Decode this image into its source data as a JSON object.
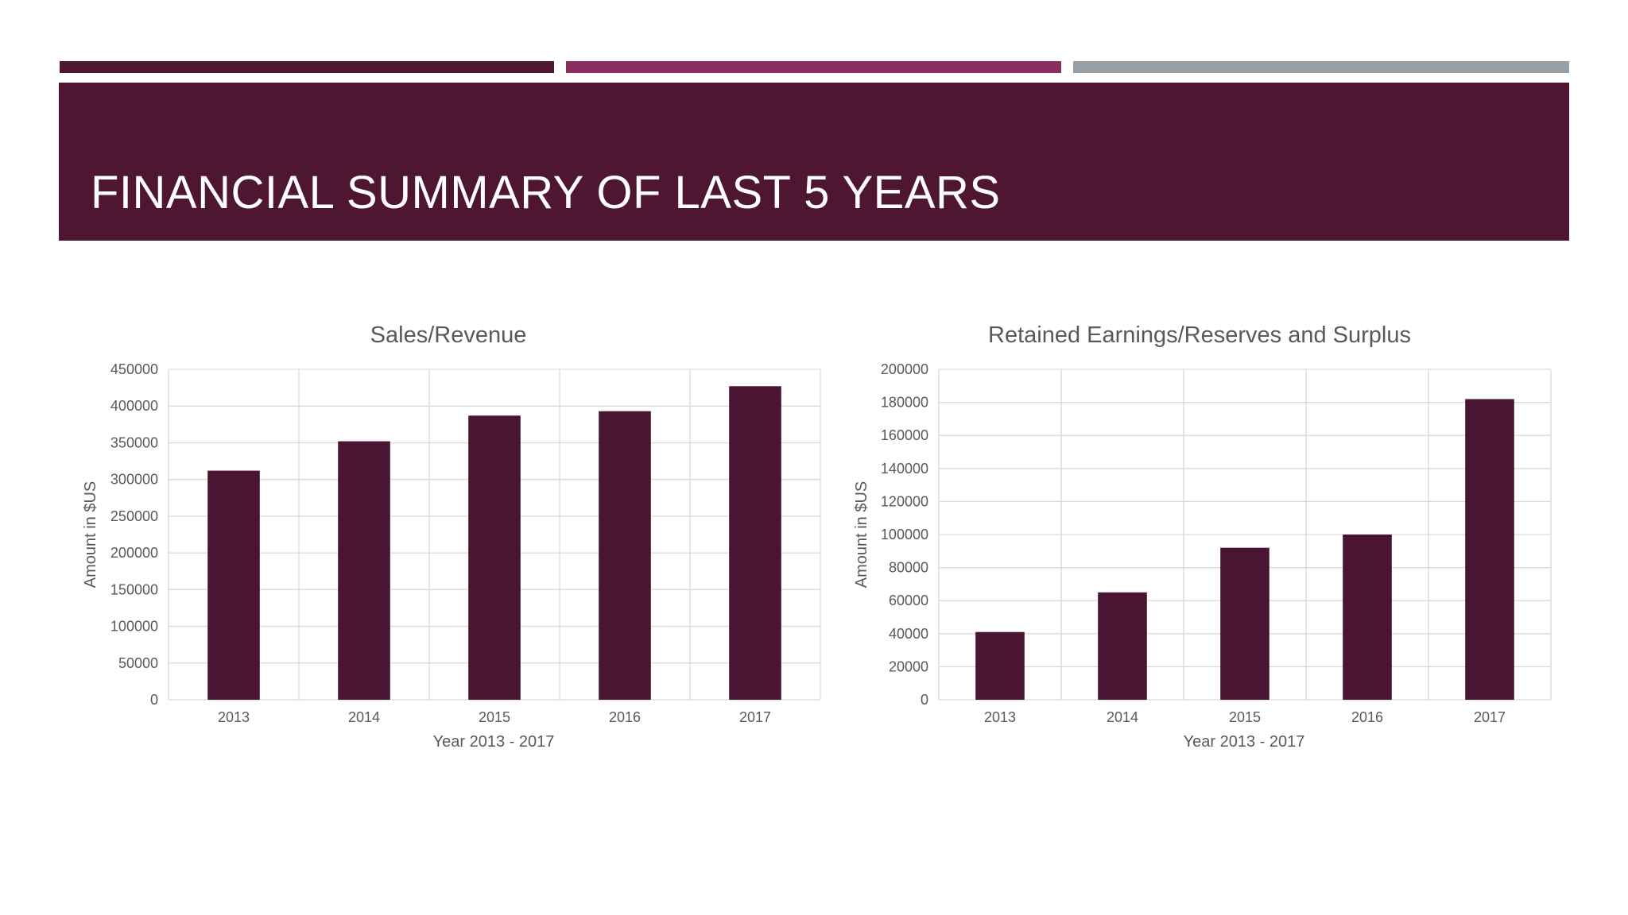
{
  "colors": {
    "accent_dark": "#4f1632",
    "accent_mid": "#8a2e62",
    "accent_gray": "#97a0a7",
    "bar": "#4a1532",
    "grid": "#d9d9d9",
    "text": "#595959"
  },
  "slide": {
    "title": "FINANCIAL SUMMARY OF LAST 5 YEARS"
  },
  "chart_data": [
    {
      "type": "bar",
      "title": "Sales/Revenue",
      "xlabel": "Year 2013 - 2017",
      "ylabel": "Amount in $US",
      "categories": [
        "2013",
        "2014",
        "2015",
        "2016",
        "2017"
      ],
      "values": [
        312000,
        352000,
        387000,
        393000,
        427000
      ],
      "ylim": [
        0,
        450000
      ],
      "yticks": [
        "0",
        "50000",
        "100000",
        "150000",
        "200000",
        "250000",
        "300000",
        "350000",
        "400000",
        "450000"
      ],
      "grid": true,
      "legend": "none"
    },
    {
      "type": "bar",
      "title": "Retained Earnings/Reserves and Surplus",
      "xlabel": "Year 2013 - 2017",
      "ylabel": "Amount in $US",
      "categories": [
        "2013",
        "2014",
        "2015",
        "2016",
        "2017"
      ],
      "values": [
        41000,
        65000,
        92000,
        100000,
        182000
      ],
      "ylim": [
        0,
        200000
      ],
      "yticks": [
        "0",
        "20000",
        "40000",
        "60000",
        "80000",
        "100000",
        "120000",
        "140000",
        "160000",
        "180000",
        "200000"
      ],
      "grid": true,
      "legend": "none"
    }
  ]
}
